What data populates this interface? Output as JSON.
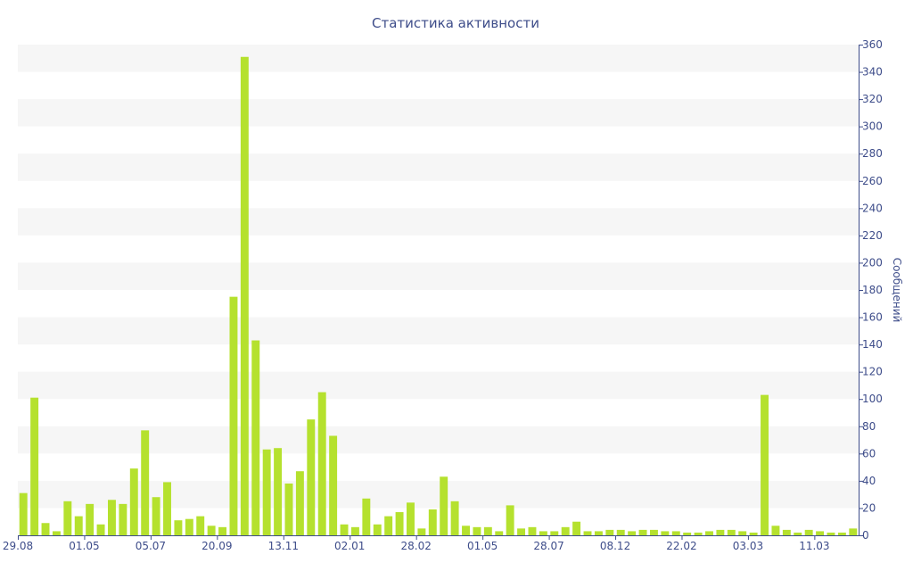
{
  "chart_data": {
    "type": "bar",
    "title": "Статистика активности",
    "xlabel": "",
    "ylabel": "Сообщений",
    "ylim": [
      0,
      360
    ],
    "y_ticks": [
      0,
      20,
      40,
      60,
      80,
      100,
      120,
      140,
      160,
      180,
      200,
      220,
      240,
      260,
      280,
      300,
      320,
      340,
      360
    ],
    "x_tick_labels": [
      {
        "index": 0,
        "label": "29.08"
      },
      {
        "index": 6,
        "label": "01.05"
      },
      {
        "index": 12,
        "label": "05.07"
      },
      {
        "index": 18,
        "label": "20.09"
      },
      {
        "index": 24,
        "label": "13.11"
      },
      {
        "index": 30,
        "label": "02.01"
      },
      {
        "index": 36,
        "label": "28.02"
      },
      {
        "index": 42,
        "label": "01.05"
      },
      {
        "index": 48,
        "label": "28.07"
      },
      {
        "index": 54,
        "label": "08.12"
      },
      {
        "index": 60,
        "label": "22.02"
      },
      {
        "index": 66,
        "label": "03.03"
      },
      {
        "index": 72,
        "label": "11.03"
      }
    ],
    "values": [
      31,
      101,
      9,
      3,
      25,
      14,
      23,
      8,
      26,
      23,
      49,
      77,
      28,
      39,
      11,
      12,
      14,
      7,
      6,
      175,
      351,
      143,
      63,
      64,
      38,
      47,
      85,
      105,
      73,
      8,
      6,
      27,
      8,
      14,
      17,
      24,
      5,
      19,
      43,
      25,
      7,
      6,
      6,
      3,
      22,
      5,
      6,
      3,
      3,
      6,
      10,
      3,
      3,
      4,
      4,
      3,
      4,
      4,
      3,
      3,
      2,
      2,
      3,
      4,
      4,
      3,
      2,
      103,
      7,
      4,
      2,
      4,
      3,
      2,
      2,
      5
    ],
    "grid": "alternating horizontal bands",
    "y_axis_position": "right",
    "colors": {
      "bar": "#b5e12e",
      "text": "#3e4d8a",
      "band": "#f6f6f6",
      "axis": "#3e4d8a"
    }
  }
}
